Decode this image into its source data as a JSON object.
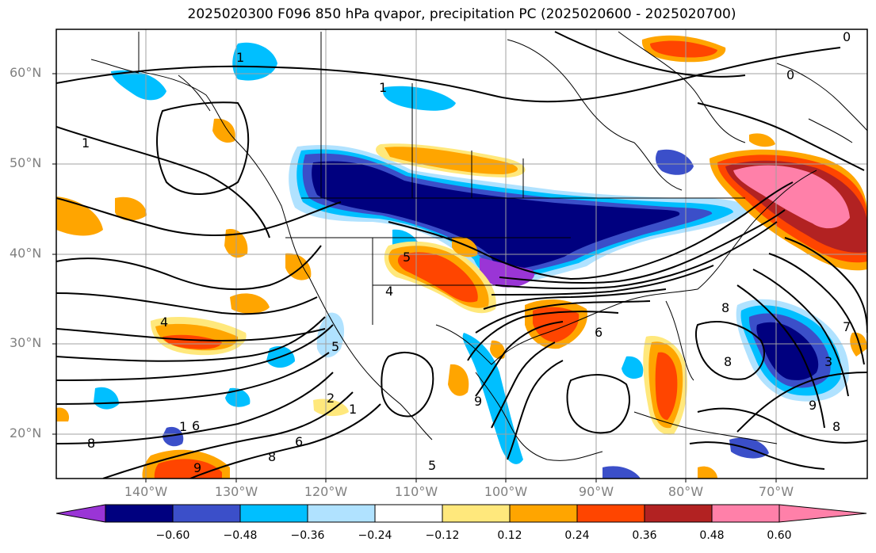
{
  "title": "2025020300 F096 850 hPa qvapor, precipitation PC (2025020600 - 2025020700)",
  "latitudes": [
    "60°N",
    "50°N",
    "40°N",
    "30°N",
    "20°N"
  ],
  "longitudes": [
    "140°W",
    "130°W",
    "120°W",
    "110°W",
    "100°W",
    "90°W",
    "80°W",
    "70°W"
  ],
  "colorbar": {
    "ticks": [
      "−0.60",
      "−0.48",
      "−0.36",
      "−0.24",
      "−0.12",
      "0.12",
      "0.24",
      "0.36",
      "0.48",
      "0.60"
    ],
    "colors": [
      "#9a35d6",
      "#00007f",
      "#3b4fc9",
      "#00bfff",
      "#b0e2ff",
      "#ffffff",
      "#ffe87c",
      "#ffa500",
      "#ff4500",
      "#b22222",
      "#ff80a9"
    ]
  },
  "contour_labels": [
    "1",
    "1",
    "1",
    "0",
    "0",
    "5",
    "4",
    "4",
    "2",
    "1",
    "1",
    "6",
    "8",
    "6",
    "5",
    "8",
    "9",
    "8",
    "3",
    "9",
    "8",
    "5",
    "6",
    "9",
    "7",
    "8"
  ]
}
